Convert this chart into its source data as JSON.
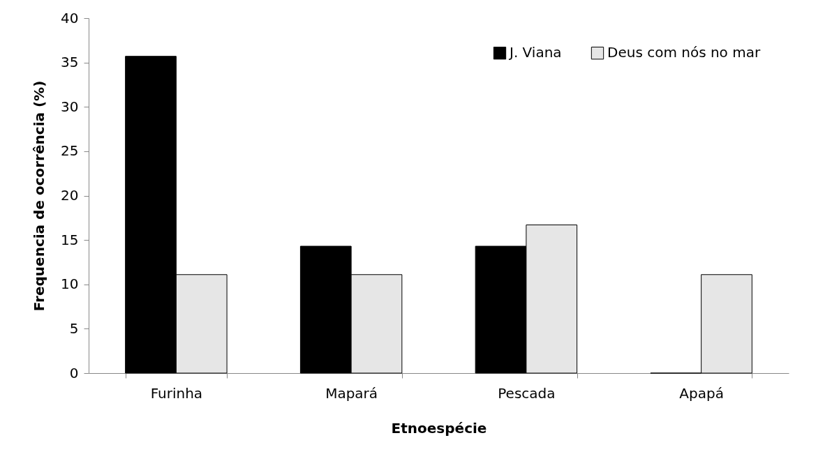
{
  "chart_data": {
    "type": "bar",
    "xlabel": "Etnoespécie",
    "ylabel": "Frequencia de ocorrência (%)",
    "categories": [
      "Furinha",
      "Mapará",
      "Pescada",
      "Apapá"
    ],
    "series": [
      {
        "name": "J. Viana",
        "color": "#000000",
        "values": [
          35.7,
          14.3,
          14.3,
          0
        ]
      },
      {
        "name": "Deus com nós no mar",
        "color": "#e6e6e6",
        "values": [
          11.1,
          11.1,
          16.7,
          11.1
        ]
      }
    ],
    "ylim": [
      0,
      40
    ],
    "yticks": [
      0,
      5,
      10,
      15,
      20,
      25,
      30,
      35,
      40
    ],
    "legend": "top right"
  }
}
